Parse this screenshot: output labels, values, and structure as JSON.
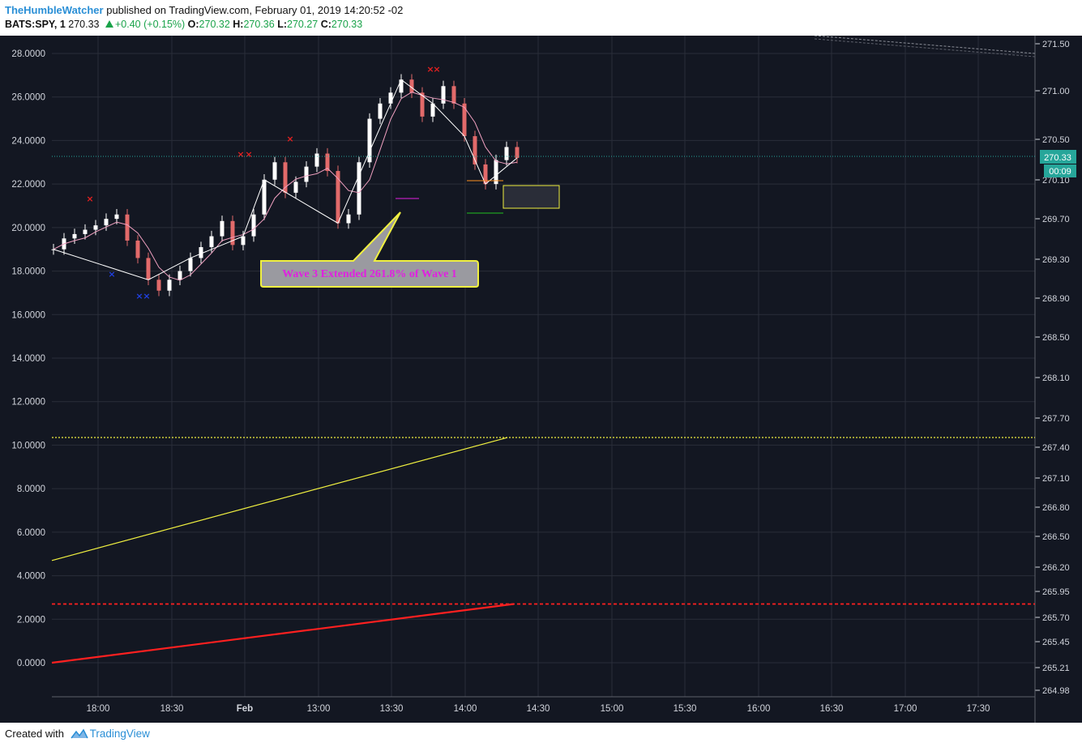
{
  "header": {
    "author": "TheHumbleWatcher",
    "published_text": "published on TradingView.com, February 01, 2019 14:20:52 -02",
    "symbol": "BATS:SPY, 1",
    "last": "270.33",
    "change": "+0.40 (+0.15%)",
    "open_label": "O:",
    "open": "270.32",
    "high_label": "H:",
    "high": "270.36",
    "low_label": "L:",
    "low": "270.27",
    "close_label": "C:",
    "close": "270.33"
  },
  "footer": {
    "created_with": "Created with",
    "brand": "TradingView"
  },
  "colors": {
    "background": "#131722",
    "grid": "#2a2e39",
    "text": "#d1d4dc",
    "up": "#ffffff",
    "down": "#e26a6a",
    "yellow": "#f0f040",
    "red": "#ff2020",
    "price_tag": "#26a69a",
    "annotation_text": "#e020e0"
  },
  "chart_data": {
    "type": "line",
    "title": "",
    "x_ticks": [
      "18:00",
      "18:30",
      "Feb",
      "13:00",
      "13:30",
      "14:00",
      "14:30",
      "15:00",
      "15:30",
      "16:00",
      "16:30",
      "17:00",
      "17:30"
    ],
    "left_axis": {
      "ticks": [
        "28.0000",
        "26.0000",
        "24.0000",
        "22.0000",
        "20.0000",
        "18.0000",
        "16.0000",
        "14.0000",
        "12.0000",
        "10.0000",
        "8.0000",
        "6.0000",
        "4.0000",
        "2.0000",
        "0.0000"
      ],
      "ylim": [
        -1.5,
        28.8
      ]
    },
    "right_axis": {
      "ticks": [
        "271.50",
        "271.00",
        "270.50",
        "270.10",
        "269.70",
        "269.30",
        "268.90",
        "268.50",
        "268.10",
        "267.70",
        "267.40",
        "267.10",
        "266.80",
        "266.50",
        "266.20",
        "265.95",
        "265.70",
        "265.45",
        "265.21",
        "264.98"
      ]
    },
    "price_label": "270.33",
    "countdown_label": "00:09",
    "annotation": "Wave 3 Extended 261.8% of Wave 1",
    "left_series": [
      {
        "style": "yellow horizontal dotted",
        "value": 10.35
      },
      {
        "style": "red horizontal dashed",
        "value": 2.7
      },
      {
        "style": "yellow rising line",
        "from": 4.7,
        "to": 10.35
      },
      {
        "style": "red rising line",
        "from": 0.0,
        "to": 2.7
      }
    ],
    "close_series": [
      19.0,
      19.5,
      19.7,
      19.9,
      20.1,
      20.4,
      20.6,
      19.4,
      18.6,
      17.6,
      17.1,
      17.6,
      18.0,
      18.6,
      19.1,
      19.6,
      20.3,
      19.2,
      19.6,
      20.6,
      22.2,
      23.0,
      21.6,
      22.1,
      22.8,
      23.4,
      22.6,
      20.2,
      20.6,
      23.0,
      25.0,
      25.7,
      26.2,
      26.8,
      26.2,
      25.1,
      25.7,
      26.5,
      25.7,
      24.2,
      22.9,
      22.0,
      23.1,
      23.7,
      23.2
    ]
  }
}
